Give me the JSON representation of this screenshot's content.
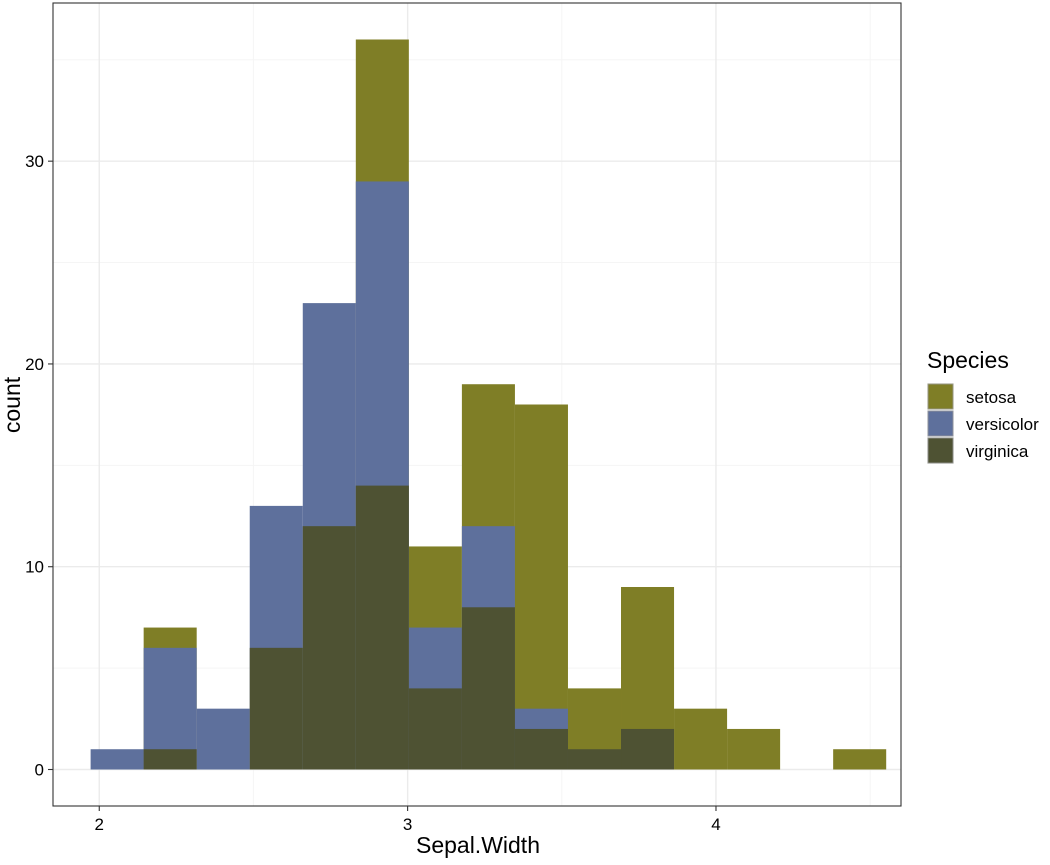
{
  "chart_data": {
    "type": "bar",
    "subtype": "histogram-stacked",
    "xlabel": "Sepal.Width",
    "ylabel": "count",
    "xlim": [
      1.85,
      4.6
    ],
    "ylim": [
      -1.8,
      37.8
    ],
    "x_ticks": [
      2,
      3,
      4
    ],
    "x_tick_labels": [
      "2",
      "3",
      "4"
    ],
    "x_minor_ticks": [
      2.5,
      3.5,
      4.5
    ],
    "y_ticks": [
      0,
      10,
      20,
      30
    ],
    "y_tick_labels": [
      "0",
      "10",
      "20",
      "30"
    ],
    "y_minor_ticks": [
      5,
      15,
      25,
      35
    ],
    "grid": true,
    "legend": {
      "title": "Species",
      "position": "right",
      "entries": [
        "setosa",
        "versicolor",
        "virginica"
      ]
    },
    "colors": {
      "setosa": "#7f7e26",
      "versicolor": "#5e709c",
      "virginica": "#4e5233",
      "panel_border": "#333333",
      "grid_major": "#ebebeb",
      "grid_minor": "#f5f5f5"
    },
    "bins": [
      [
        1.972,
        2.144
      ],
      [
        2.144,
        2.316
      ],
      [
        2.316,
        2.488
      ],
      [
        2.488,
        2.66
      ],
      [
        2.66,
        2.832
      ],
      [
        2.832,
        3.004
      ],
      [
        3.004,
        3.176
      ],
      [
        3.176,
        3.348
      ],
      [
        3.348,
        3.52
      ],
      [
        3.52,
        3.692
      ],
      [
        3.692,
        3.864
      ],
      [
        3.864,
        4.036
      ],
      [
        4.036,
        4.208
      ],
      [
        4.208,
        4.38
      ],
      [
        4.38,
        4.552
      ]
    ],
    "series": [
      {
        "name": "setosa",
        "values": [
          0,
          7,
          0,
          0,
          0,
          36,
          11,
          19,
          18,
          4,
          9,
          3,
          2,
          0,
          1
        ]
      },
      {
        "name": "versicolor",
        "values": [
          1,
          6,
          3,
          13,
          23,
          29,
          7,
          12,
          3,
          0,
          0,
          0,
          0,
          0,
          0
        ]
      },
      {
        "name": "virginica",
        "values": [
          0,
          1,
          0,
          6,
          12,
          14,
          4,
          8,
          2,
          1,
          2,
          0,
          0,
          0,
          0
        ]
      }
    ]
  }
}
